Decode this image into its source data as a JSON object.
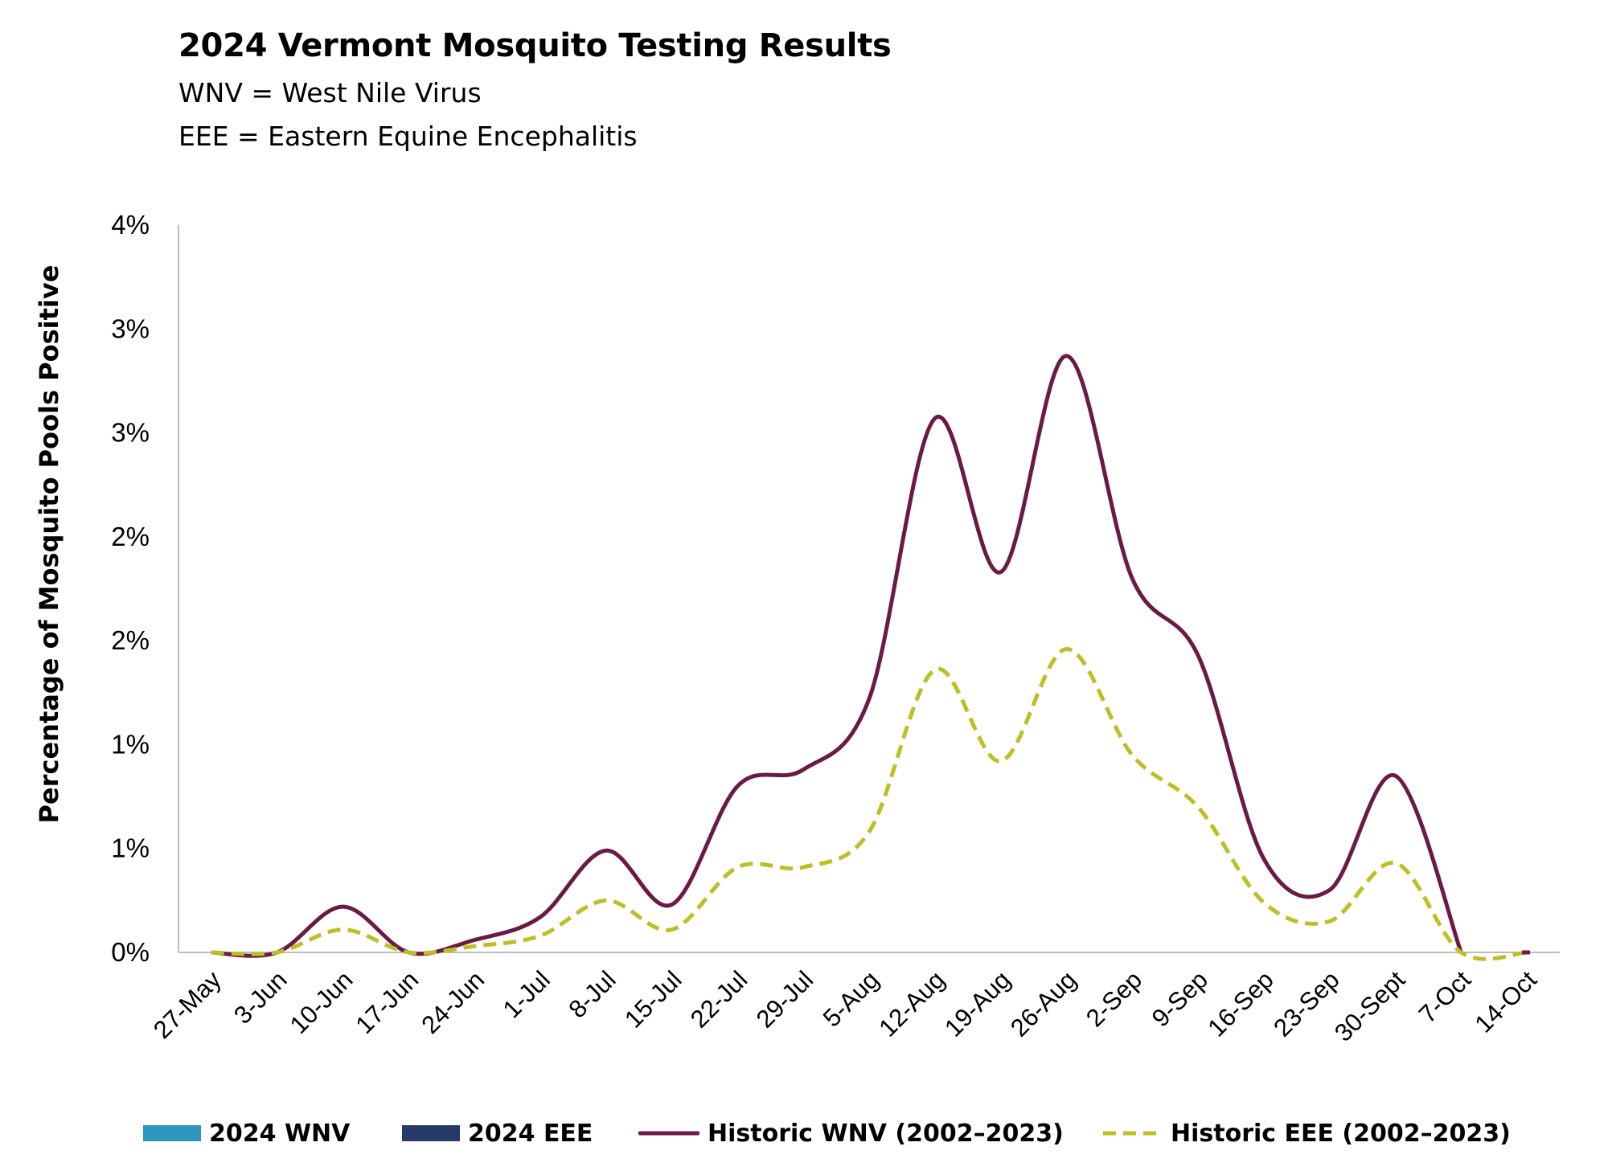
{
  "header": {
    "title": "2024 Vermont Mosquito Testing Results",
    "subtitle_lines": [
      "WNV = West Nile Virus",
      "EEE = Eastern Equine Encephalitis"
    ]
  },
  "legend": [
    {
      "label": "2024 WNV",
      "color": "#2e96bf",
      "style": "bar"
    },
    {
      "label": "2024 EEE",
      "color": "#253a6a",
      "style": "bar"
    },
    {
      "label": "Historic WNV (2002–2023)",
      "color": "#6b1a44",
      "style": "solid-line"
    },
    {
      "label": "Historic EEE (2002–2023)",
      "color": "#bcc024",
      "style": "dashed-line"
    }
  ],
  "chart_data": {
    "type": "line",
    "ylabel": "Percentage of Mosquito Pools Positive",
    "xlabel": "",
    "categories": [
      "27-May",
      "3-Jun",
      "10-Jun",
      "17-Jun",
      "24-Jun",
      "1-Jul",
      "8-Jul",
      "15-Jul",
      "22-Jul",
      "29-Jul",
      "5-Aug",
      "12-Aug",
      "19-Aug",
      "26-Aug",
      "2-Sep",
      "9-Sep",
      "16-Sep",
      "23-Sep",
      "30-Sept",
      "7-Oct",
      "14-Oct"
    ],
    "ylim": [
      0,
      3.5
    ],
    "y_ticks": [
      0,
      0.5,
      1.0,
      1.5,
      2.0,
      2.5,
      3.0,
      3.5
    ],
    "y_tick_labels": [
      "0%",
      "1%",
      "1%",
      "2%",
      "2%",
      "3%",
      "3%",
      "4%"
    ],
    "grid": false,
    "legend_position": "bottom",
    "series": [
      {
        "name": "2024 WNV",
        "type": "bar",
        "color": "#2e96bf",
        "values": [
          0,
          0,
          0,
          0,
          0,
          0,
          0,
          0,
          0,
          0,
          0,
          0,
          0,
          0,
          0,
          0,
          0,
          0,
          0,
          0,
          0
        ]
      },
      {
        "name": "2024 EEE",
        "type": "bar",
        "color": "#253a6a",
        "values": [
          0,
          0,
          0,
          0,
          0,
          0,
          0,
          0,
          0,
          0,
          0,
          0,
          0,
          0,
          0,
          0,
          0,
          0,
          0,
          0,
          0
        ]
      },
      {
        "name": "Historic WNV (2002–2023)",
        "type": "line",
        "color": "#6b1a44",
        "dash": false,
        "values": [
          0,
          0,
          0.22,
          0,
          0.06,
          0.17,
          0.49,
          0.23,
          0.8,
          0.88,
          1.22,
          2.57,
          1.83,
          2.87,
          1.8,
          1.43,
          0.45,
          0.3,
          0.85,
          0,
          null
        ]
      },
      {
        "name": "Historic EEE (2002–2023)",
        "type": "line",
        "color": "#bcc024",
        "dash": true,
        "values": [
          0,
          0,
          0.11,
          0,
          0.03,
          0.08,
          0.25,
          0.11,
          0.41,
          0.41,
          0.58,
          1.36,
          0.92,
          1.46,
          0.95,
          0.7,
          0.24,
          0.15,
          0.43,
          0,
          0
        ]
      }
    ]
  }
}
